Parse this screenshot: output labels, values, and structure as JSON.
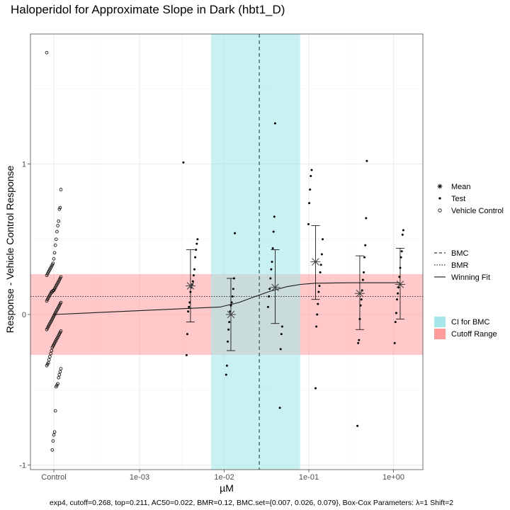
{
  "chart_data": {
    "type": "scatter",
    "title": "Haloperidol for Approximate Slope in Dark (hbt1_D)",
    "xlabel": "µM",
    "ylabel": "Response - Vehicle Control Response",
    "x_scale": "log10",
    "x_ticks": [
      {
        "label": "Control",
        "value": "control"
      },
      {
        "label": "1e-03",
        "value": 0.001
      },
      {
        "label": "1e-02",
        "value": 0.01
      },
      {
        "label": "1e+00",
        "value": 1
      },
      {
        "label": "1e-01",
        "value": 0.1
      }
    ],
    "y_ticks": [
      -1,
      0,
      1
    ],
    "ylim": [
      -1.04,
      1.86
    ],
    "bmc": 0.026,
    "bmc_ci": [
      0.007,
      0.079
    ],
    "bmr": 0.12,
    "cutoff": 0.268,
    "fit": {
      "model": "exp4",
      "top": 0.211,
      "ac50": 0.022
    },
    "winning_fit_points": [
      {
        "x": "control",
        "y": 0
      },
      {
        "x": 0.009,
        "y": 0.05
      },
      {
        "x": 0.015,
        "y": 0.08
      },
      {
        "x": 0.022,
        "y": 0.115
      },
      {
        "x": 0.035,
        "y": 0.155
      },
      {
        "x": 0.055,
        "y": 0.185
      },
      {
        "x": 0.08,
        "y": 0.2
      },
      {
        "x": 0.12,
        "y": 0.208
      },
      {
        "x": 0.3,
        "y": 0.211
      },
      {
        "x": 1.2,
        "y": 0.211
      }
    ],
    "dose_groups": [
      {
        "dose": 0.004,
        "mean": 0.19,
        "err_low": -0.05,
        "err_high": 0.43,
        "points": [
          1.01,
          0.5,
          0.47,
          0.43,
          0.38,
          0.3,
          0.26,
          0.22,
          0.2,
          0.18,
          0.15,
          0.08,
          0.05,
          0.02,
          -0.13,
          -0.27
        ]
      },
      {
        "dose": 0.012,
        "mean": 0.0,
        "err_low": -0.24,
        "err_high": 0.24,
        "points": [
          0.54,
          0.24,
          0.17,
          0.12,
          0.08,
          0.06,
          0.02,
          -0.05,
          -0.1,
          -0.18,
          -0.34,
          -0.4
        ]
      },
      {
        "dose": 0.04,
        "mean": 0.18,
        "err_low": -0.06,
        "err_high": 0.43,
        "points": [
          1.27,
          0.65,
          0.55,
          0.44,
          0.35,
          0.3,
          0.24,
          0.17,
          0.12,
          0.05,
          -0.08,
          -0.13,
          -0.23,
          -0.62
        ]
      },
      {
        "dose": 0.12,
        "mean": 0.35,
        "err_low": 0.1,
        "err_high": 0.59,
        "points": [
          0.96,
          0.92,
          0.83,
          0.74,
          0.6,
          0.5,
          0.4,
          0.33,
          0.28,
          0.19,
          0.15,
          0.07,
          0.0,
          -0.08,
          -0.49
        ]
      },
      {
        "dose": 0.4,
        "mean": 0.14,
        "err_low": -0.1,
        "err_high": 0.39,
        "points": [
          1.02,
          0.64,
          0.46,
          0.38,
          0.28,
          0.23,
          0.16,
          0.1,
          0.06,
          -0.03,
          -0.17,
          -0.19,
          -0.74
        ]
      },
      {
        "dose": 1.2,
        "mean": 0.2,
        "err_low": -0.03,
        "err_high": 0.44,
        "points": [
          0.56,
          0.53,
          0.42,
          0.38,
          0.31,
          0.25,
          0.18,
          0.14,
          0.1,
          0.01,
          -0.05,
          -0.19
        ]
      }
    ],
    "vehicle_control": [
      1.74,
      0.83,
      0.71,
      0.7,
      0.62,
      0.59,
      0.55,
      0.5,
      0.46,
      0.41,
      0.37,
      0.34,
      0.33,
      0.32,
      0.31,
      0.3,
      0.29,
      0.28,
      0.27,
      0.26,
      0.25,
      0.24,
      0.23,
      0.22,
      0.21,
      0.2,
      0.19,
      0.18,
      0.17,
      0.16,
      0.16,
      0.15,
      0.15,
      0.14,
      0.13,
      0.12,
      0.11,
      0.1,
      0.09,
      0.08,
      0.07,
      0.06,
      0.05,
      0.04,
      0.03,
      0.02,
      0.01,
      0.0,
      -0.01,
      -0.02,
      -0.03,
      -0.04,
      -0.05,
      -0.06,
      -0.07,
      -0.08,
      -0.09,
      -0.1,
      -0.11,
      -0.12,
      -0.13,
      -0.14,
      -0.15,
      -0.16,
      -0.17,
      -0.18,
      -0.19,
      -0.2,
      -0.21,
      -0.22,
      -0.24,
      -0.26,
      -0.28,
      -0.3,
      -0.32,
      -0.33,
      -0.34,
      -0.36,
      -0.38,
      -0.4,
      -0.42,
      -0.46,
      -0.47,
      -0.48,
      -0.64,
      -0.78,
      -0.8,
      -0.84,
      -0.9
    ],
    "legend": {
      "position": "right",
      "groups": [
        {
          "items": [
            {
              "symbol": "asterisk",
              "label": "Mean"
            },
            {
              "symbol": "dot",
              "label": "Test"
            },
            {
              "symbol": "circle",
              "label": "Vehicle Control"
            }
          ]
        },
        {
          "items": [
            {
              "symbol": "dashed",
              "label": "BMC"
            },
            {
              "symbol": "dotted",
              "label": "BMR"
            },
            {
              "symbol": "solid",
              "label": "Winning Fit"
            }
          ]
        },
        {
          "items": [
            {
              "symbol": "fill-cyan",
              "label": "CI for BMC"
            },
            {
              "symbol": "fill-red",
              "label": "Cutoff Range"
            }
          ]
        }
      ]
    },
    "colors": {
      "ci_fill": "#A6E7EA",
      "cutoff_fill": "#FF9C9C",
      "grid": "#EBEBEB",
      "points": "#000000",
      "mean": "#404040"
    },
    "caption": "exp4, cutoff=0.268, top=0.211, AC50=0.022, BMR=0.12, BMC.set={0.007, 0.026, 0.079}, Box-Cox Parameters: λ=1 Shift=2"
  }
}
